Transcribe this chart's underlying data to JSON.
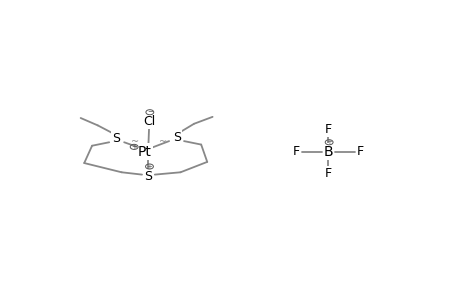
{
  "bg_color": "#ffffff",
  "line_color": "#888888",
  "text_color": "#000000",
  "lw": 1.3,
  "fs": 9,
  "cfs": 5,
  "cr": 0.011,
  "pt": [
    0.245,
    0.5
  ],
  "b": [
    0.76,
    0.5
  ]
}
